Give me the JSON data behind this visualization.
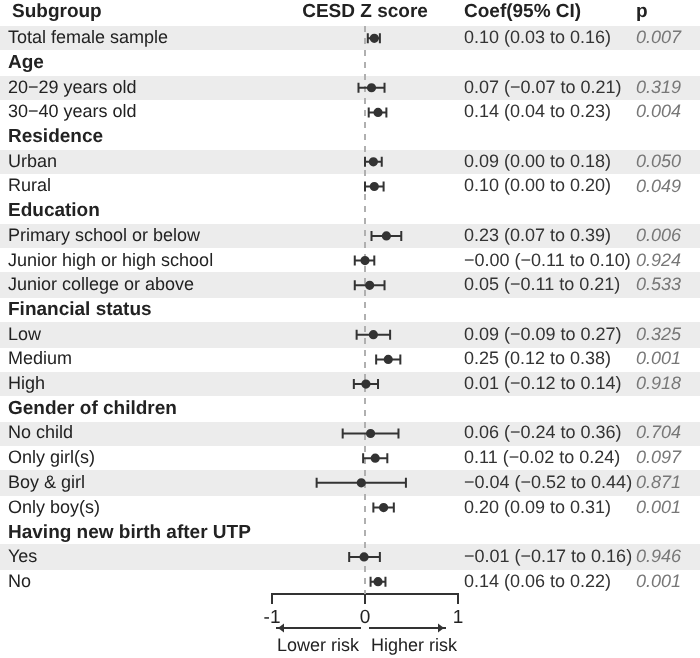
{
  "chart_data": {
    "type": "scatter",
    "orientation": "horizontal",
    "xlabel": "CESD Z score",
    "categories": [
      "Total female sample",
      "Age",
      "20−29 years old",
      "30−40 years old",
      "Residence",
      "Urban",
      "Rural",
      "Education",
      "Primary school or below",
      "Junior high or high school",
      "Junior college or above",
      "Financial status",
      "Low",
      "Medium",
      "High",
      "Gender of children",
      "No child",
      "Only girl(s)",
      "Boy & girl",
      "Only boy(s)",
      "Having new birth after UTP",
      "Yes",
      "No"
    ],
    "values": [
      0.1,
      null,
      0.07,
      0.14,
      null,
      0.09,
      0.1,
      null,
      0.23,
      0,
      0.05,
      null,
      0.09,
      0.25,
      0.01,
      null,
      0.06,
      0.11,
      -0.04,
      0.2,
      null,
      -0.01,
      0.14
    ],
    "errors": [
      [
        0.03,
        0.16
      ],
      null,
      [
        -0.07,
        0.21
      ],
      [
        0.04,
        0.23
      ],
      null,
      [
        0.0,
        0.18
      ],
      [
        0.0,
        0.2
      ],
      null,
      [
        0.07,
        0.39
      ],
      [
        -0.11,
        0.1
      ],
      [
        -0.11,
        0.21
      ],
      null,
      [
        -0.09,
        0.27
      ],
      [
        0.12,
        0.38
      ],
      [
        -0.12,
        0.14
      ],
      null,
      [
        -0.24,
        0.36
      ],
      [
        -0.02,
        0.24
      ],
      [
        -0.52,
        0.44
      ],
      [
        0.09,
        0.31
      ],
      null,
      [
        -0.17,
        0.16
      ],
      [
        0.06,
        0.22
      ]
    ],
    "color": "#333333",
    "marker": "circle",
    "grid": false,
    "legend": false,
    "xlim": [
      -1,
      1
    ],
    "xticks": [
      -1,
      0,
      1
    ],
    "ref_lines": [
      {
        "axis": "x",
        "value": 0,
        "color": "#b0b0b0",
        "line_style": "dashed"
      }
    ],
    "annotations": [
      "Subgroup",
      "Coef(95% CI)",
      "p",
      "Lower risk",
      "Higher risk",
      "0.10 (0.03 to 0.16)",
      "0.07 (−0.07 to 0.21)",
      "0.14 (0.04 to 0.23)",
      "0.09 (0.00 to 0.18)",
      "0.10 (0.00 to 0.20)",
      "0.23 (0.07 to 0.39)",
      "−0.00 (−0.11 to 0.10)",
      "0.05 (−0.11 to 0.21)",
      "0.09 (−0.09 to 0.27)",
      "0.25 (0.12 to 0.38)",
      "0.01 (−0.12 to 0.14)",
      "0.06 (−0.24 to 0.36)",
      "0.11 (−0.02 to 0.24)",
      "−0.04 (−0.52 to 0.44)",
      "0.20 (0.09 to 0.31)",
      "−0.01 (−0.17 to 0.16)",
      "0.14 (0.06 to 0.22)",
      "0.007",
      "0.319",
      "0.004",
      "0.050",
      "0.049",
      "0.006",
      "0.924",
      "0.533",
      "0.325",
      "0.001",
      "0.918",
      "0.704",
      "0.097",
      "0.871",
      "0.001",
      "0.946",
      "0.001"
    ]
  }
}
